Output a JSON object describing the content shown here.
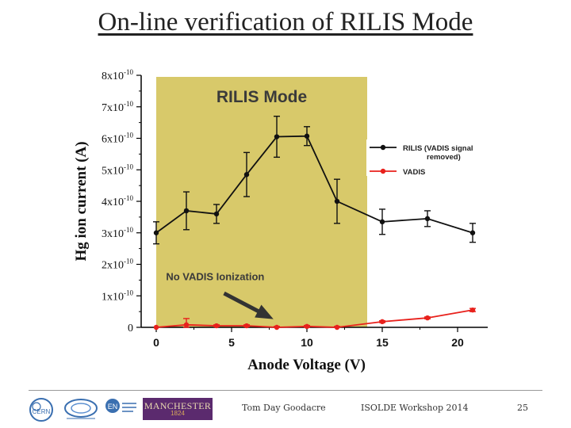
{
  "slide": {
    "title": "On-line verification of RILIS Mode",
    "footer": {
      "author": "Tom Day Goodacre",
      "event": "ISOLDE Workshop 2014",
      "page": "25"
    },
    "logos": {
      "manchester_text": "MANCHESTER",
      "manchester_year": "1824",
      "cern_text": "CERN",
      "en_text": "EN"
    }
  },
  "chart_data": {
    "type": "line",
    "xlabel": "Anode Voltage (V)",
    "ylabel": "Hg ion current (A)",
    "xlim": [
      -1,
      22
    ],
    "ylim": [
      0,
      8e-10
    ],
    "xticks": [
      0,
      5,
      10,
      15,
      20
    ],
    "yticks": [
      "0",
      "1x10-10",
      "2x10-10",
      "3x10-10",
      "4x10-10",
      "5x10-10",
      "6x10-10",
      "7x10-10",
      "8x10-10"
    ],
    "ytick_base": "x10",
    "ytick_exp": "-10",
    "shaded_region": {
      "x_from": 0,
      "x_to": 14,
      "color": "#d8c96a"
    },
    "annotations": {
      "region_label": "RILIS Mode",
      "arrow_label": "No VADIS Ionization"
    },
    "legend": {
      "position": "right",
      "entries": [
        {
          "label_line1": "RILIS (VADIS signal",
          "label_line2": "removed)",
          "color": "#111111"
        },
        {
          "label_line1": "VADIS",
          "label_line2": "",
          "color": "#e8211c"
        }
      ]
    },
    "series": [
      {
        "name": "RILIS (VADIS signal removed)",
        "color": "#111111",
        "x": [
          0,
          2,
          4,
          6,
          8,
          10,
          12,
          15,
          18,
          21
        ],
        "y": [
          3e-10,
          3.7e-10,
          3.6e-10,
          4.85e-10,
          6.05e-10,
          6.07e-10,
          4e-10,
          3.35e-10,
          3.45e-10,
          3e-10
        ],
        "err": [
          3.5e-11,
          6e-11,
          3e-11,
          7e-11,
          6.5e-11,
          3e-11,
          7e-11,
          4e-11,
          2.5e-11,
          3e-11
        ]
      },
      {
        "name": "VADIS",
        "color": "#e8211c",
        "x": [
          0,
          2,
          4,
          6,
          8,
          10,
          12,
          15,
          18,
          21
        ],
        "y": [
          0.0,
          8e-12,
          5e-12,
          5e-12,
          0.0,
          3e-12,
          0.0,
          1.8e-11,
          3e-11,
          5.5e-11
        ],
        "err": [
          0.0,
          2e-11,
          3e-12,
          3e-12,
          3e-12,
          3e-12,
          3e-12,
          3e-12,
          3e-12,
          5e-12
        ]
      }
    ]
  }
}
